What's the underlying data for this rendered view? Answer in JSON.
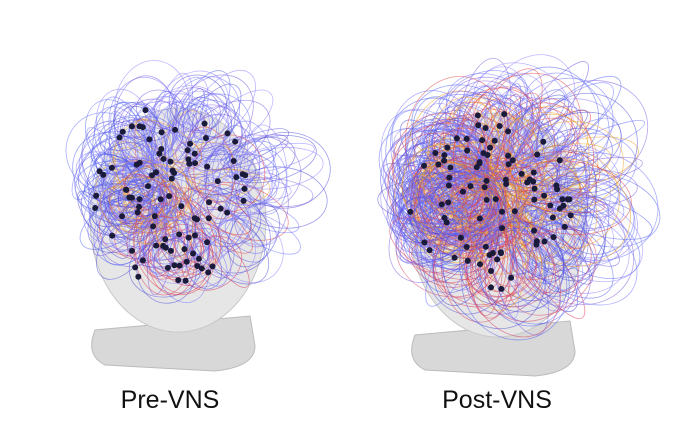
{
  "panels": [
    {
      "label": "Pre-VNS"
    },
    {
      "label": "Post-VNS"
    }
  ]
}
